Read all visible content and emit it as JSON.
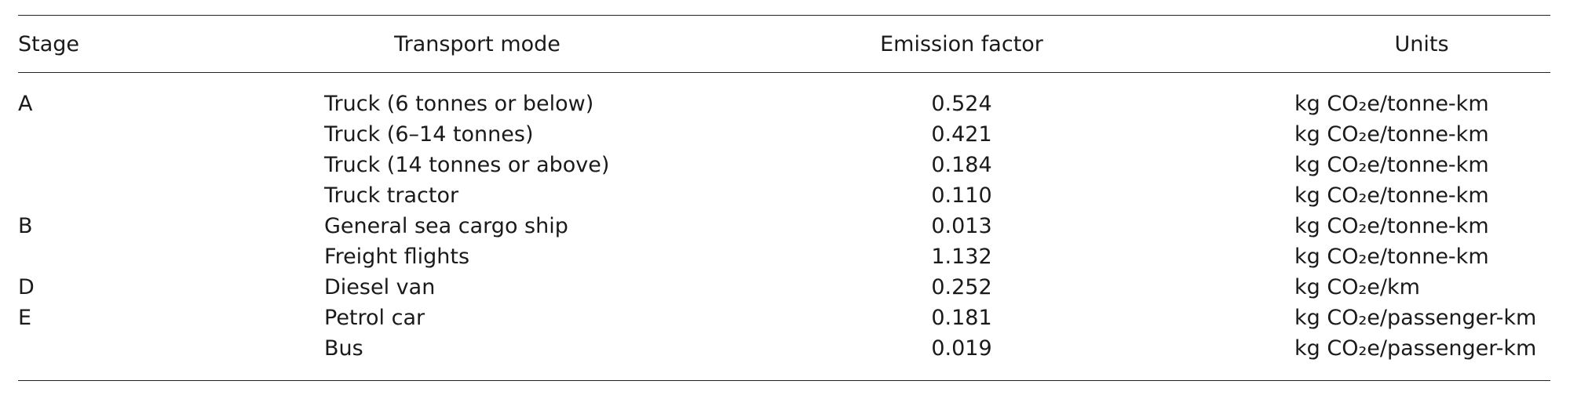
{
  "table": {
    "header": [
      "Stage",
      "Transport mode",
      "Emission factor",
      "Units"
    ],
    "groups": [
      {
        "stage": "A",
        "rows": [
          [
            "Truck (6 tonnes or below)",
            "0.524",
            "kg CO₂e/tonne-km"
          ],
          [
            "Truck (6–14 tonnes)",
            "0.421",
            "kg CO₂e/tonne-km"
          ],
          [
            "Truck (14 tonnes or above)",
            "0.184",
            "kg CO₂e/tonne-km"
          ],
          [
            "Truck tractor",
            "0.110",
            "kg CO₂e/tonne-km"
          ]
        ]
      },
      {
        "stage": "B",
        "rows": [
          [
            "General sea cargo ship",
            "0.013",
            "kg CO₂e/tonne-km"
          ],
          [
            "Freight flights",
            "1.132",
            "kg CO₂e/tonne-km"
          ]
        ]
      },
      {
        "stage": "D",
        "rows": [
          [
            "Diesel van",
            "0.252",
            "kg CO₂e/km"
          ]
        ]
      },
      {
        "stage": "E",
        "rows": [
          [
            "Petrol car",
            "0.181",
            "kg CO₂e/passenger-km"
          ],
          [
            "Bus",
            "0.019",
            "kg CO₂e/passenger-km"
          ]
        ]
      }
    ]
  }
}
